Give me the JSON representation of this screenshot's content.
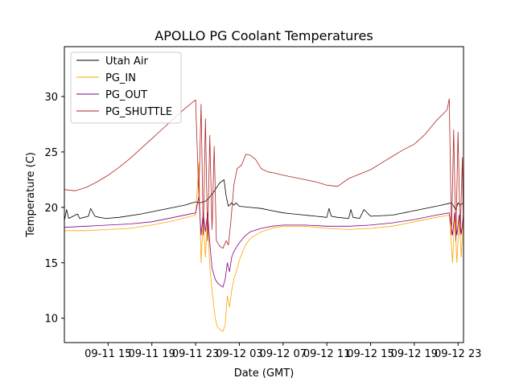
{
  "chart_data": {
    "type": "line",
    "title": "APOLLO PG Coolant Temperatures",
    "xlabel": "Date (GMT)",
    "ylabel": "Temperature (C)",
    "xlim_hours": [
      -2,
      34.5
    ],
    "ylim": [
      7.8,
      34.5
    ],
    "x_ticks": [
      {
        "hour": 2,
        "label": "09-11 15"
      },
      {
        "hour": 6,
        "label": "09-11 19"
      },
      {
        "hour": 10,
        "label": "09-11 23"
      },
      {
        "hour": 14,
        "label": "09-12 03"
      },
      {
        "hour": 18,
        "label": "09-12 07"
      },
      {
        "hour": 22,
        "label": "09-12 11"
      },
      {
        "hour": 26,
        "label": "09-12 15"
      },
      {
        "hour": 30,
        "label": "09-12 19"
      },
      {
        "hour": 34,
        "label": "09-12 23"
      }
    ],
    "y_ticks": [
      10,
      15,
      20,
      25,
      30
    ],
    "legend_position": "upper-left",
    "series": [
      {
        "name": "Utah Air",
        "color": "#000000",
        "x": [
          -2,
          -1.8,
          -1.6,
          -1.2,
          -0.8,
          -0.6,
          -0.2,
          0.2,
          0.4,
          0.8,
          1.2,
          1.8,
          3,
          5,
          7,
          9,
          10,
          10.4,
          11,
          11.6,
          12.2,
          12.6,
          12.8,
          13,
          13.3,
          13.5,
          13.7,
          14,
          15,
          16,
          17,
          18,
          19,
          20,
          21,
          22,
          22.2,
          22.4,
          23,
          24,
          24.2,
          24.4,
          25,
          25.4,
          26,
          28,
          30,
          32,
          33.4,
          33.8,
          34,
          34.2,
          34.5
        ],
        "values": [
          18.8,
          19.8,
          19.0,
          19.2,
          19.4,
          19.0,
          19.1,
          19.2,
          19.9,
          19.2,
          19.1,
          19.0,
          19.1,
          19.4,
          19.8,
          20.2,
          20.5,
          20.4,
          20.6,
          21.3,
          22.2,
          22.5,
          21.0,
          20.1,
          20.4,
          20.2,
          20.4,
          20.1,
          20.0,
          19.9,
          19.7,
          19.5,
          19.4,
          19.3,
          19.2,
          19.1,
          19.9,
          19.2,
          19.1,
          19.0,
          19.8,
          19.1,
          19.0,
          19.8,
          19.2,
          19.3,
          19.7,
          20.1,
          20.4,
          19.8,
          20.4,
          20.2,
          20.4
        ]
      },
      {
        "name": "PG_IN",
        "color": "#ffa500",
        "x": [
          -2,
          0,
          2,
          4,
          6,
          8,
          10,
          10.3,
          10.5,
          10.7,
          10.9,
          11.1,
          11.3,
          11.5,
          11.8,
          12.0,
          12.2,
          12.5,
          12.7,
          12.9,
          13.1,
          13.3,
          13.5,
          13.8,
          14,
          14.5,
          15,
          16,
          17,
          18,
          20,
          22,
          24,
          26,
          28,
          30,
          32,
          33.2,
          33.5,
          33.7,
          33.9,
          34.1,
          34.3,
          34.5
        ],
        "values": [
          17.9,
          17.9,
          18.0,
          18.1,
          18.4,
          18.8,
          19.3,
          24.0,
          15.0,
          19.0,
          15.5,
          19.0,
          14.7,
          12.5,
          10.0,
          9.2,
          9.0,
          8.8,
          9.4,
          12.0,
          11.0,
          12.5,
          13.5,
          14.5,
          15.2,
          16.5,
          17.2,
          17.8,
          18.1,
          18.3,
          18.3,
          18.1,
          18.0,
          18.1,
          18.3,
          18.7,
          19.1,
          19.3,
          15.0,
          19.4,
          15.0,
          19.0,
          15.5,
          19.3
        ]
      },
      {
        "name": "PG_OUT",
        "color": "#800080",
        "x": [
          -2,
          0,
          2,
          4,
          6,
          8,
          10,
          10.3,
          10.5,
          10.7,
          10.9,
          11.1,
          11.3,
          11.5,
          11.8,
          12.0,
          12.2,
          12.5,
          12.7,
          12.9,
          13.1,
          13.3,
          13.5,
          13.8,
          14,
          14.5,
          15,
          16,
          17,
          18,
          20,
          22,
          24,
          26,
          28,
          30,
          32,
          33.2,
          33.5,
          33.7,
          33.9,
          34.1,
          34.3,
          34.5
        ],
        "values": [
          18.2,
          18.3,
          18.4,
          18.5,
          18.7,
          19.1,
          19.5,
          21.0,
          17.5,
          19.5,
          17.8,
          19.5,
          16.8,
          14.5,
          13.5,
          13.2,
          13.0,
          12.8,
          13.5,
          15.0,
          14.2,
          15.5,
          16.0,
          16.5,
          16.8,
          17.4,
          17.8,
          18.1,
          18.3,
          18.4,
          18.4,
          18.3,
          18.3,
          18.4,
          18.6,
          18.9,
          19.3,
          19.5,
          17.5,
          19.5,
          17.5,
          19.3,
          17.6,
          19.4
        ]
      },
      {
        "name": "PG_SHUTTLE",
        "color": "#b22222",
        "x": [
          -2,
          -1,
          0,
          1,
          2,
          3,
          4,
          5,
          6,
          7,
          8,
          9,
          10,
          10.3,
          10.5,
          10.7,
          10.9,
          11.1,
          11.3,
          11.5,
          11.7,
          11.9,
          12.2,
          12.5,
          12.8,
          13,
          13.2,
          13.5,
          13.8,
          14.2,
          14.6,
          15,
          15.5,
          16,
          16.6,
          17.2,
          18,
          19,
          20,
          21,
          22,
          23,
          24,
          25,
          26,
          27,
          28,
          29,
          30,
          31,
          32,
          33,
          33.2,
          33.4,
          33.6,
          33.8,
          34.0,
          34.2,
          34.4,
          34.5
        ],
        "values": [
          21.6,
          21.5,
          21.8,
          22.3,
          22.9,
          23.6,
          24.4,
          25.3,
          26.2,
          27.1,
          28.0,
          28.9,
          29.7,
          21.0,
          29.3,
          17.5,
          28.0,
          17.0,
          26.5,
          18.0,
          25.5,
          17.0,
          16.5,
          16.3,
          17.0,
          16.6,
          18.5,
          22.0,
          23.5,
          23.8,
          24.8,
          24.7,
          24.3,
          23.5,
          23.2,
          23.1,
          22.9,
          22.7,
          22.5,
          22.3,
          22.0,
          21.9,
          22.6,
          23.0,
          23.4,
          24.0,
          24.6,
          25.2,
          25.7,
          26.6,
          27.8,
          28.8,
          29.8,
          17.5,
          27.0,
          17.0,
          26.8,
          17.5,
          24.5,
          17.5
        ]
      }
    ]
  }
}
